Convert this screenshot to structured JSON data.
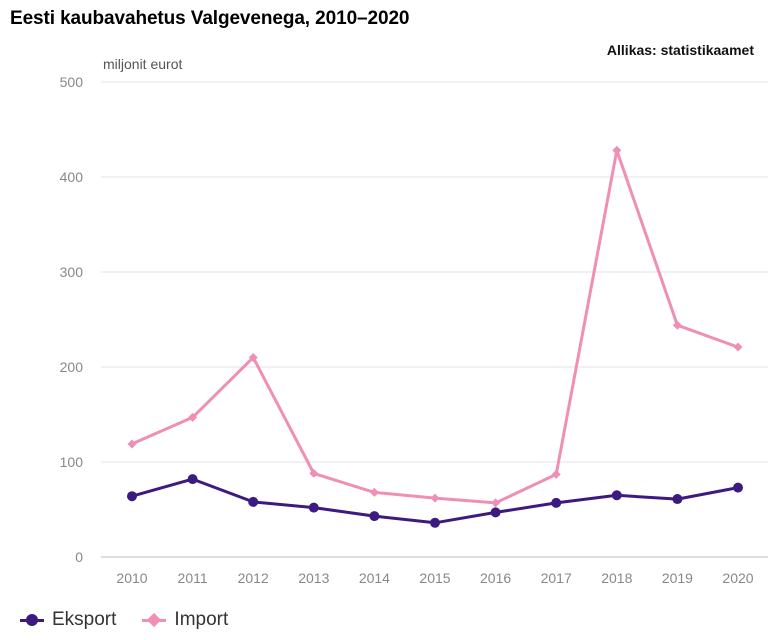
{
  "chart_data": {
    "type": "line",
    "title": "Eesti kaubavahetus Valgevenega, 2010–2020",
    "source": "Allikas: statistikaamet",
    "ylabel": "miljonit eurot",
    "xlabel": "",
    "ylim": [
      0,
      500
    ],
    "yticks": [
      0,
      100,
      200,
      300,
      400,
      500
    ],
    "categories": [
      "2010",
      "2011",
      "2012",
      "2013",
      "2014",
      "2015",
      "2016",
      "2017",
      "2018",
      "2019",
      "2020"
    ],
    "series": [
      {
        "name": "Eksport",
        "color": "#3d1a80",
        "marker": "circle",
        "values": [
          64,
          82,
          58,
          52,
          43,
          36,
          47,
          57,
          65,
          61,
          73
        ]
      },
      {
        "name": "Import",
        "color": "#ef8fb4",
        "marker": "diamond",
        "values": [
          119,
          147,
          210,
          88,
          68,
          62,
          57,
          87,
          428,
          244,
          221
        ]
      }
    ],
    "grid": true,
    "legend": "bottom-left"
  }
}
